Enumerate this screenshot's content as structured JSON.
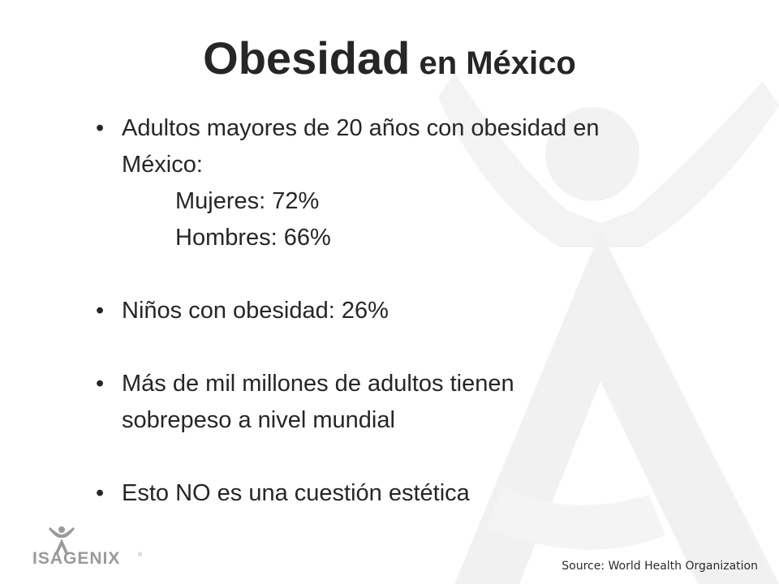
{
  "slide": {
    "title_main": "Obesidad",
    "title_rest": " en México",
    "bullet_glyph": "•",
    "bullets": [
      {
        "line1": "Adultos mayores de 20 años con obesidad en",
        "line2": "México:",
        "sub1": "Mujeres: 72%",
        "sub2": "Hombres: 66%"
      },
      {
        "text": "Niños con obesidad: 26%"
      },
      {
        "line1": "Más de mil millones de adultos tienen",
        "line2": "sobrepeso a nivel mundial"
      },
      {
        "text": "Esto NO es una cuestión estética"
      }
    ],
    "source": "Source: World Health Organization"
  },
  "logo": {
    "text": "ISAGENIX",
    "mark": "®"
  },
  "colors": {
    "text": "#262626",
    "watermark": "#f1f1f1",
    "logo": "#9a9a9a"
  }
}
